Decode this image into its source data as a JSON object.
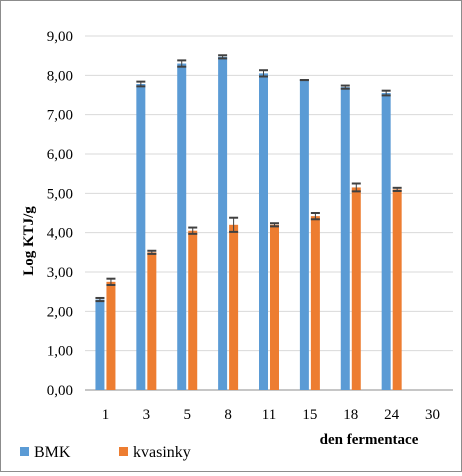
{
  "chart_data": {
    "type": "bar",
    "title": "",
    "xlabel": "den fermentace",
    "ylabel": "Log KTJ/g",
    "ylim": [
      0,
      9
    ],
    "yticks": [
      "0,00",
      "1,00",
      "2,00",
      "3,00",
      "4,00",
      "5,00",
      "6,00",
      "7,00",
      "8,00",
      "9,00"
    ],
    "categories": [
      "1",
      "3",
      "5",
      "8",
      "11",
      "15",
      "18",
      "24",
      "30"
    ],
    "grid": true,
    "legend_position": "bottom-left",
    "series": [
      {
        "name": "BMK",
        "color": "#5b9bd5",
        "values": [
          2.3,
          7.78,
          8.3,
          8.47,
          8.05,
          7.88,
          7.7,
          7.55,
          null
        ],
        "errors": [
          0.04,
          0.06,
          0.08,
          0.04,
          0.08,
          0.0,
          0.04,
          0.06,
          null
        ]
      },
      {
        "name": "kvasinky",
        "color": "#ed7d31",
        "values": [
          2.75,
          3.5,
          4.05,
          4.2,
          4.2,
          4.42,
          5.15,
          5.1,
          null
        ],
        "errors": [
          0.08,
          0.04,
          0.08,
          0.18,
          0.04,
          0.08,
          0.1,
          0.04,
          null
        ]
      }
    ]
  }
}
